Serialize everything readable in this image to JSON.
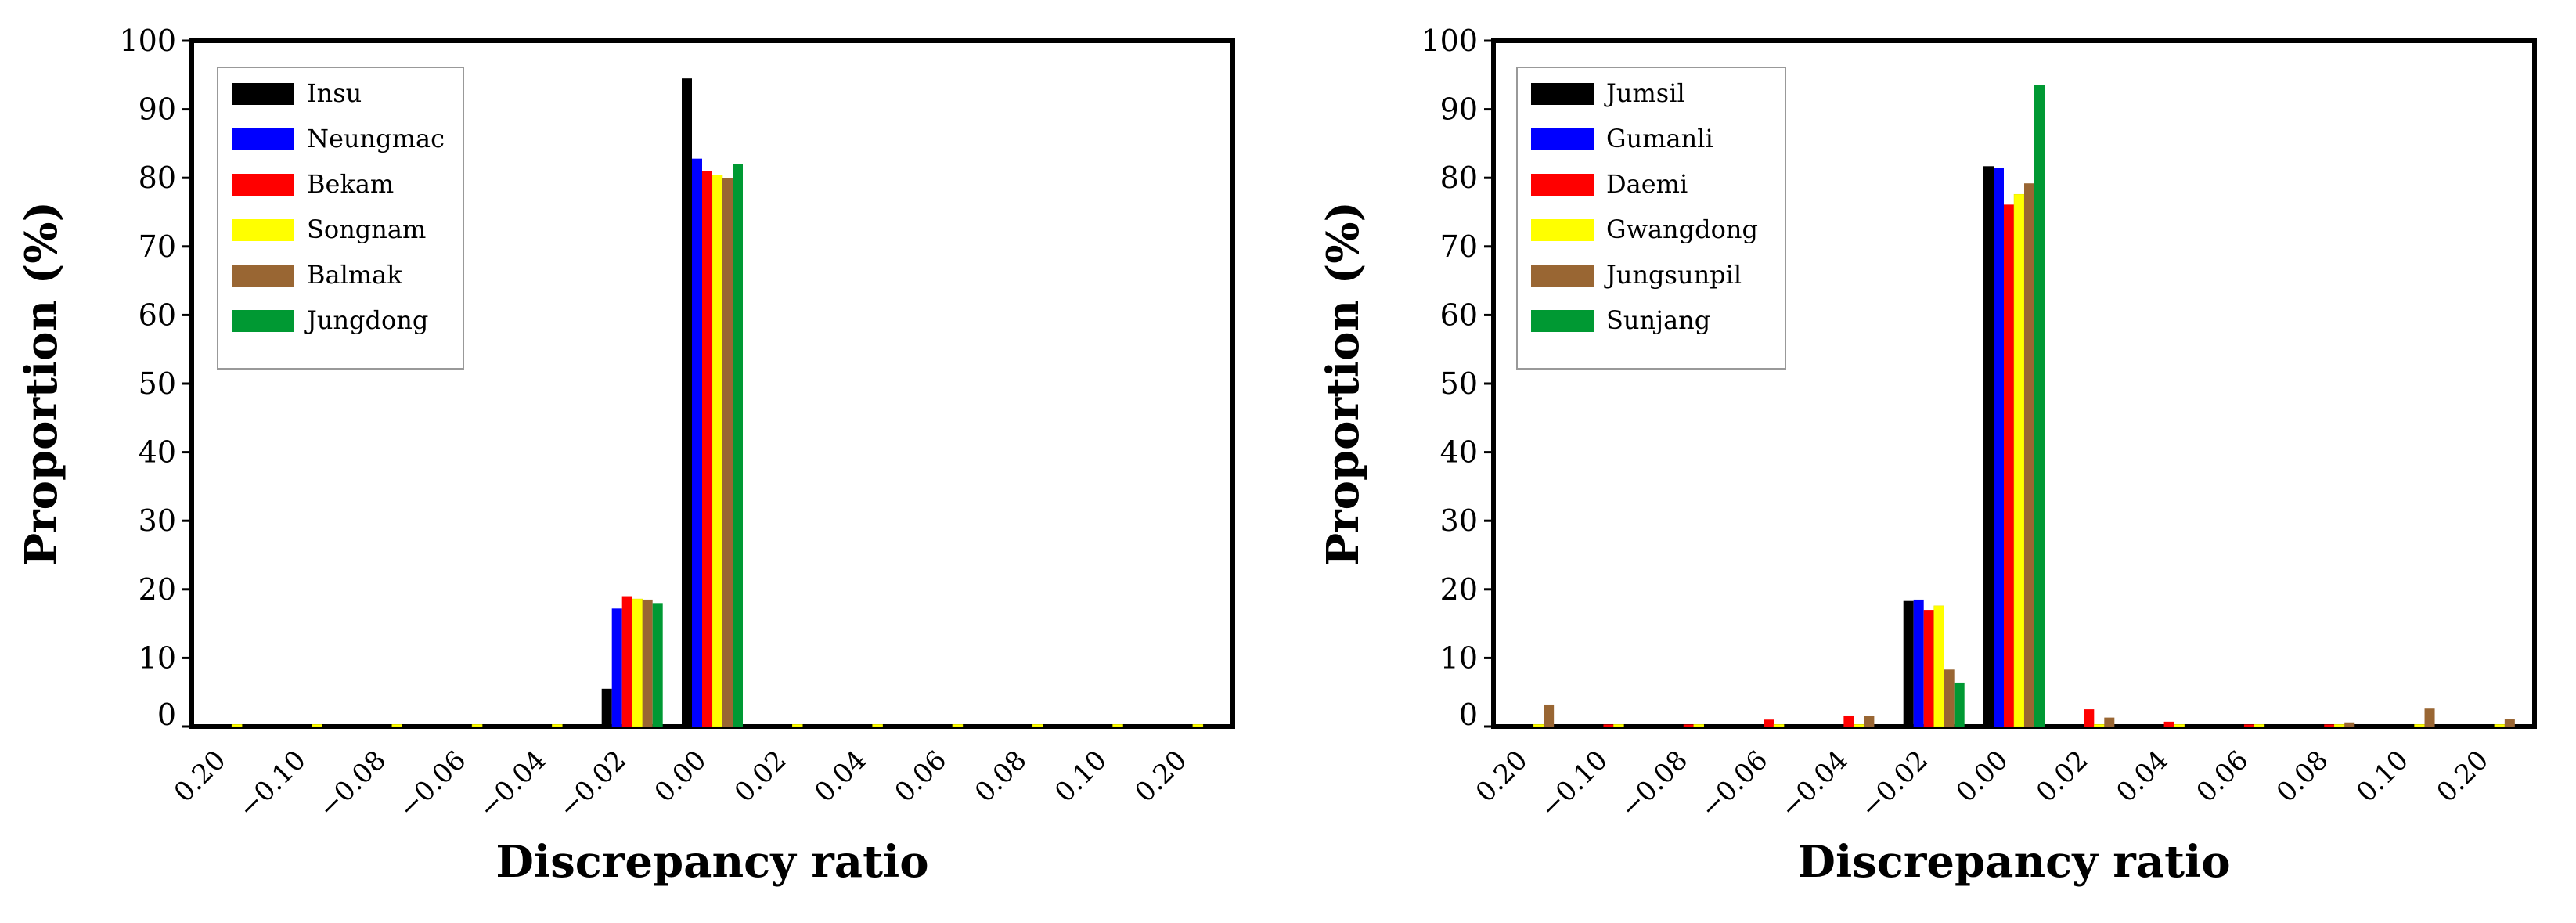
{
  "chart_data": [
    {
      "type": "bar",
      "xlabel": "Discrepancy ratio",
      "ylabel": "Proportion (%)",
      "ylim": [
        0,
        100
      ],
      "y_ticks": [
        "0",
        "10",
        "20",
        "30",
        "40",
        "50",
        "60",
        "70",
        "80",
        "90",
        "100"
      ],
      "categories": [
        "0.20",
        "−0.10",
        "−0.08",
        "−0.06",
        "−0.04",
        "−0.02",
        "0.00",
        "0.02",
        "0.04",
        "0.06",
        "0.08",
        "0.10",
        "0.20"
      ],
      "legend_position": "top-left",
      "series": [
        {
          "name": "Insu",
          "color": "#000000",
          "values": [
            0,
            0,
            0,
            0,
            0,
            5.5,
            94.5,
            0,
            0,
            0,
            0,
            0,
            0
          ]
        },
        {
          "name": "Neungmac",
          "color": "#0000ff",
          "values": [
            0,
            0,
            0,
            0,
            0,
            17.2,
            82.8,
            0,
            0,
            0,
            0,
            0,
            0
          ]
        },
        {
          "name": "Bekam",
          "color": "#ff0000",
          "values": [
            0,
            0,
            0,
            0,
            0,
            19.0,
            81.0,
            0,
            0,
            0,
            0,
            0,
            0
          ]
        },
        {
          "name": "Songnam",
          "color": "#ffff00",
          "values": [
            0.3,
            0.3,
            0.3,
            0.3,
            0.3,
            18.6,
            80.4,
            0.3,
            0.3,
            0.3,
            0.3,
            0.3,
            0.3
          ]
        },
        {
          "name": "Balmak",
          "color": "#996633",
          "values": [
            0,
            0,
            0,
            0,
            0,
            18.5,
            80.0,
            0,
            0,
            0,
            0,
            0,
            0
          ]
        },
        {
          "name": "Jungdong",
          "color": "#009933",
          "values": [
            0,
            0,
            0,
            0,
            0,
            18.0,
            82.0,
            0,
            0,
            0,
            0,
            0,
            0
          ]
        }
      ]
    },
    {
      "type": "bar",
      "xlabel": "Discrepancy ratio",
      "ylabel": "Proportion (%)",
      "ylim": [
        0,
        100
      ],
      "y_ticks": [
        "0",
        "10",
        "20",
        "30",
        "40",
        "50",
        "60",
        "70",
        "80",
        "90",
        "100"
      ],
      "categories": [
        "0.20",
        "−0.10",
        "−0.08",
        "−0.06",
        "−0.04",
        "−0.02",
        "0.00",
        "0.02",
        "0.04",
        "0.06",
        "0.08",
        "0.10",
        "0.20"
      ],
      "legend_position": "top-left",
      "series": [
        {
          "name": "Jumsil",
          "color": "#000000",
          "values": [
            0,
            0,
            0,
            0,
            0,
            18.3,
            81.7,
            0,
            0,
            0,
            0,
            0,
            0
          ]
        },
        {
          "name": "Gumanli",
          "color": "#0000ff",
          "values": [
            0,
            0,
            0,
            0,
            0,
            18.5,
            81.5,
            0,
            0,
            0,
            0,
            0,
            0
          ]
        },
        {
          "name": "Daemi",
          "color": "#ff0000",
          "values": [
            0,
            0.3,
            0.3,
            1.0,
            1.6,
            17.0,
            76.1,
            2.5,
            0.7,
            0.3,
            0.3,
            0,
            0
          ]
        },
        {
          "name": "Gwangdong",
          "color": "#ffff00",
          "values": [
            0.3,
            0.3,
            0.3,
            0.3,
            0.3,
            17.6,
            77.6,
            0.3,
            0.3,
            0.3,
            0.3,
            0.3,
            0.3
          ]
        },
        {
          "name": "Jungsunpil",
          "color": "#996633",
          "values": [
            3.2,
            0,
            0,
            0,
            1.5,
            8.3,
            79.2,
            1.3,
            0,
            0,
            0.6,
            2.6,
            1.1
          ]
        },
        {
          "name": "Sunjang",
          "color": "#009933",
          "values": [
            0,
            0,
            0,
            0,
            0,
            6.4,
            93.6,
            0,
            0,
            0,
            0,
            0,
            0
          ]
        }
      ]
    }
  ]
}
